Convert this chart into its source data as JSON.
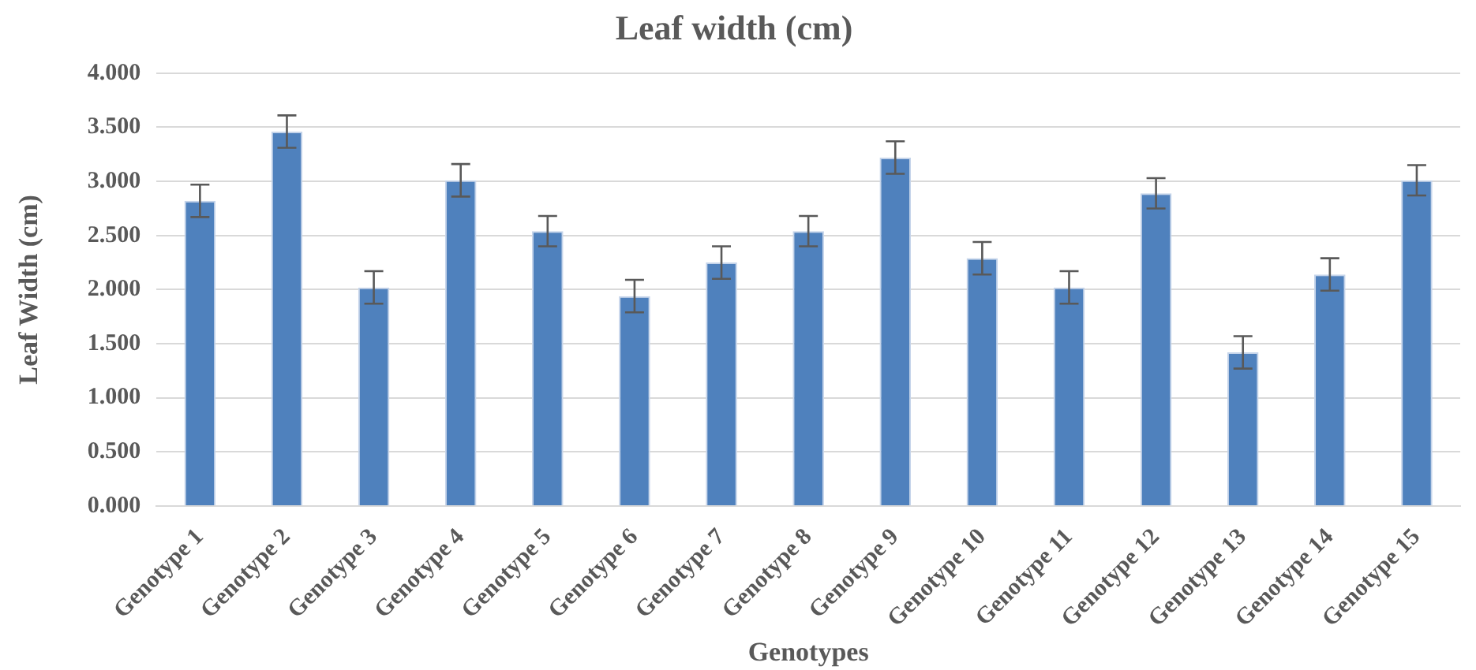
{
  "chart_data": {
    "type": "bar",
    "title": "Leaf width (cm)",
    "xlabel": "Genotypes",
    "ylabel": "Leaf Width (cm)",
    "categories": [
      "Genotype 1",
      "Genotype 2",
      "Genotype 3",
      "Genotype 4",
      "Genotype 5",
      "Genotype 6",
      "Genotype 7",
      "Genotype 8",
      "Genotype 9",
      "Genotype 10",
      "Genotype 11",
      "Genotype 12",
      "Genotype 13",
      "Genotype 14",
      "Genotype 15"
    ],
    "values": [
      2.82,
      3.46,
      2.02,
      3.01,
      2.54,
      1.94,
      2.25,
      2.54,
      3.22,
      2.29,
      2.02,
      2.89,
      1.42,
      2.14,
      3.01
    ],
    "errors": [
      0.15,
      0.15,
      0.15,
      0.15,
      0.14,
      0.15,
      0.15,
      0.14,
      0.15,
      0.15,
      0.15,
      0.14,
      0.15,
      0.15,
      0.14
    ],
    "color": "#4f81bd",
    "ylim": [
      0,
      4
    ],
    "yticks": [
      {
        "value": 0,
        "label": "0.000"
      },
      {
        "value": 0.5,
        "label": "0.500"
      },
      {
        "value": 1,
        "label": "1.000"
      },
      {
        "value": 1.5,
        "label": "1.500"
      },
      {
        "value": 2,
        "label": "2.000"
      },
      {
        "value": 2.5,
        "label": "2.500"
      },
      {
        "value": 3,
        "label": "3.000"
      },
      {
        "value": 3.5,
        "label": "3.500"
      },
      {
        "value": 4,
        "label": "4.000"
      }
    ],
    "grid": "y",
    "legend": false
  }
}
